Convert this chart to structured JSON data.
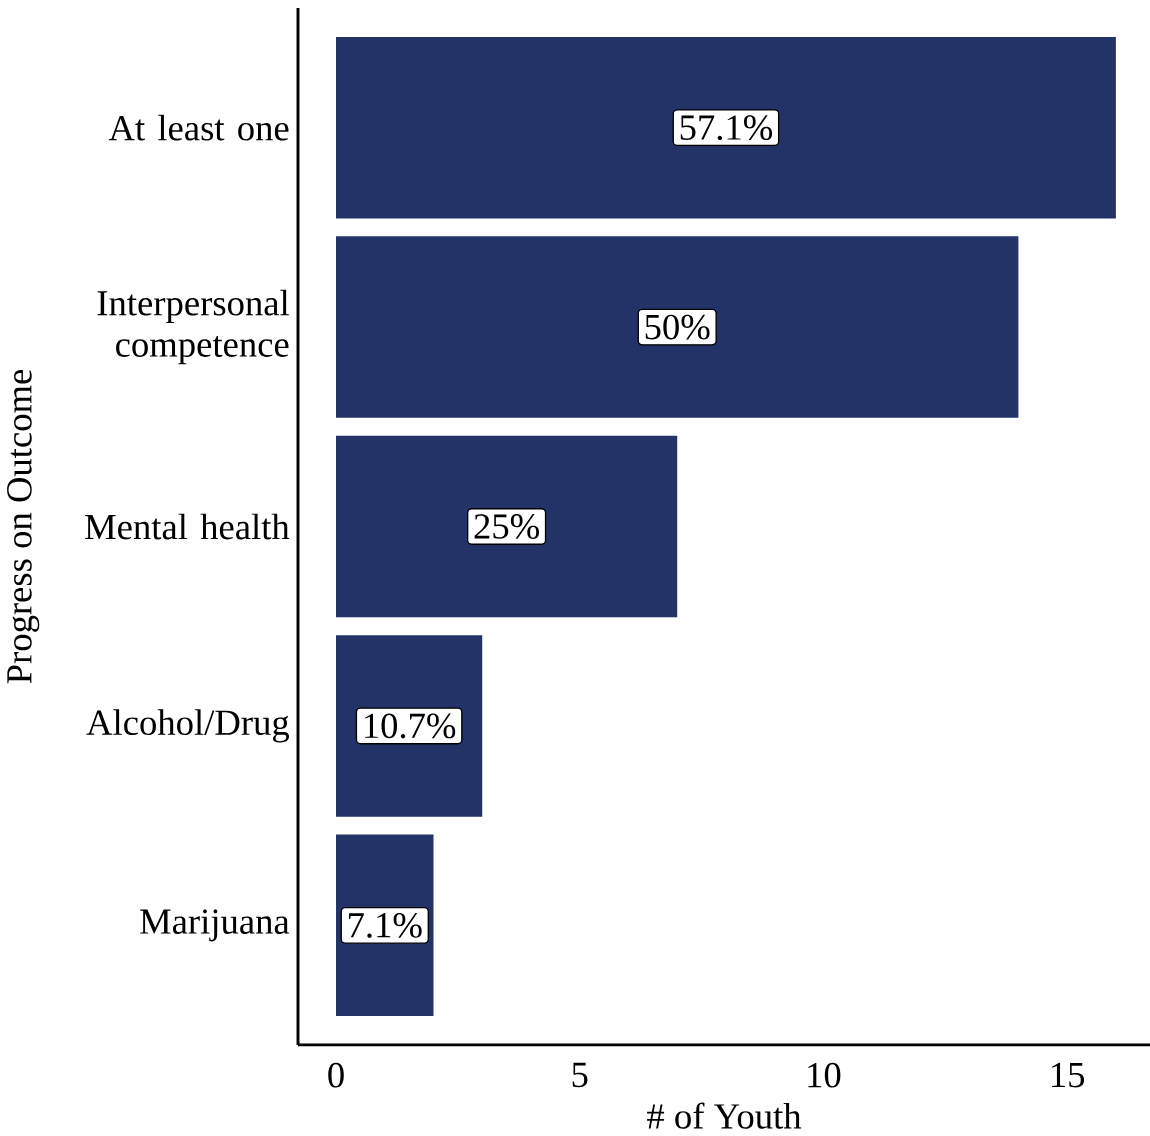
{
  "chart_data": {
    "type": "bar",
    "orientation": "horizontal",
    "xlabel": "# of Youth",
    "ylabel": "Progress on Outcome",
    "categories": [
      "At least one",
      "Interpersonal competence",
      "Mental health",
      "Alcohol/Drug",
      "Marijuana"
    ],
    "values": [
      16,
      14,
      7,
      3,
      2
    ],
    "annotations": [
      "57.1%",
      "50%",
      "25%",
      "10.7%",
      "7.1%"
    ],
    "color": "#233367",
    "xlim": [
      -0.78,
      16.7
    ],
    "xticks": [
      0,
      5,
      10,
      15
    ]
  }
}
